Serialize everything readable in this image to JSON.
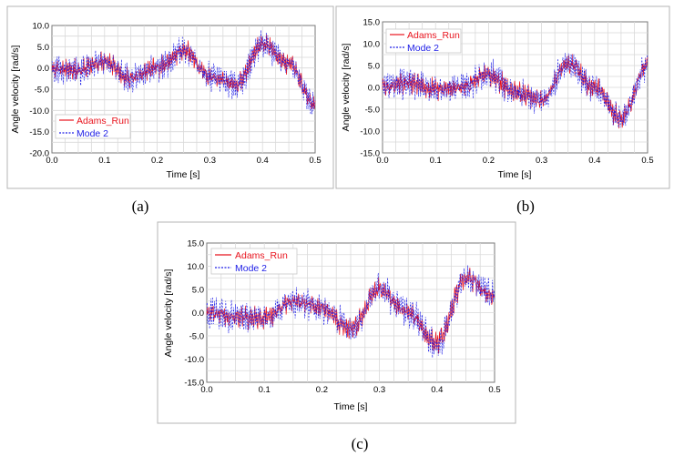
{
  "chart_data": [
    {
      "id": "a",
      "type": "line",
      "caption": "(a)",
      "xlabel": "Time [s]",
      "ylabel": "Angle velocity [rad/s]",
      "xlim": [
        0.0,
        0.5
      ],
      "ylim": [
        -20.0,
        10.0
      ],
      "xticks": [
        "0.0",
        "0.1",
        "0.2",
        "0.3",
        "0.4",
        "0.5"
      ],
      "yticks": [
        "-20.0",
        "-15.0",
        "-10.0",
        "-5.0",
        "0.0",
        "5.0",
        "10.0"
      ],
      "legend_position": "bottom-left",
      "series": [
        {
          "name": "Adams_Run",
          "color": "#e8141e",
          "style": "solid",
          "x": [
            0.0,
            0.05,
            0.1,
            0.15,
            0.2,
            0.25,
            0.3,
            0.35,
            0.4,
            0.45,
            0.5
          ],
          "y": [
            0.0,
            -0.5,
            1.5,
            -2.5,
            0.0,
            4.0,
            -2.0,
            -4.0,
            5.5,
            1.0,
            -9.0
          ]
        },
        {
          "name": "Mode 2",
          "color": "#1e1ee6",
          "style": "dashed",
          "x": [
            0.0,
            0.05,
            0.1,
            0.15,
            0.2,
            0.25,
            0.3,
            0.35,
            0.4,
            0.45,
            0.5
          ],
          "y": [
            0.0,
            -0.5,
            1.5,
            -2.5,
            0.0,
            4.0,
            -2.0,
            -4.0,
            5.5,
            1.0,
            -9.0
          ]
        }
      ]
    },
    {
      "id": "b",
      "type": "line",
      "caption": "(b)",
      "xlabel": "Time [s]",
      "ylabel": "Angle velocity [rad/s]",
      "xlim": [
        0.0,
        0.5
      ],
      "ylim": [
        -15.0,
        15.0
      ],
      "xticks": [
        "0.0",
        "0.1",
        "0.2",
        "0.3",
        "0.4",
        "0.5"
      ],
      "yticks": [
        "-15.0",
        "-10.0",
        "-5.0",
        "0.0",
        "5.0",
        "10.0",
        "15.0"
      ],
      "legend_position": "top-left",
      "series": [
        {
          "name": "Adams_Run",
          "color": "#e8141e",
          "style": "solid",
          "x": [
            0.0,
            0.05,
            0.1,
            0.15,
            0.2,
            0.25,
            0.3,
            0.35,
            0.4,
            0.45,
            0.5
          ],
          "y": [
            0.0,
            1.0,
            -0.5,
            0.0,
            3.0,
            -1.0,
            -3.0,
            5.5,
            0.0,
            -7.0,
            5.0
          ]
        },
        {
          "name": "Mode 2",
          "color": "#1e1ee6",
          "style": "dashed",
          "x": [
            0.0,
            0.05,
            0.1,
            0.15,
            0.2,
            0.25,
            0.3,
            0.35,
            0.4,
            0.45,
            0.5
          ],
          "y": [
            0.0,
            1.0,
            -0.5,
            0.0,
            3.0,
            -1.0,
            -3.0,
            5.5,
            0.0,
            -7.0,
            5.0
          ]
        }
      ]
    },
    {
      "id": "c",
      "type": "line",
      "caption": "(c)",
      "xlabel": "Time [s]",
      "ylabel": "Angle velocity [rad/s]",
      "xlim": [
        0.0,
        0.5
      ],
      "ylim": [
        -15.0,
        15.0
      ],
      "xticks": [
        "0.0",
        "0.1",
        "0.2",
        "0.3",
        "0.4",
        "0.5"
      ],
      "yticks": [
        "-15.0",
        "-10.0",
        "-5.0",
        "0.0",
        "5.0",
        "10.0",
        "15.0"
      ],
      "legend_position": "top-left",
      "series": [
        {
          "name": "Adams_Run",
          "color": "#e8141e",
          "style": "solid",
          "x": [
            0.0,
            0.05,
            0.1,
            0.15,
            0.2,
            0.25,
            0.3,
            0.35,
            0.4,
            0.45,
            0.5
          ],
          "y": [
            0.0,
            -1.0,
            -1.0,
            2.5,
            1.0,
            -3.5,
            5.0,
            0.0,
            -6.5,
            7.5,
            3.5
          ]
        },
        {
          "name": "Mode 2",
          "color": "#1e1ee6",
          "style": "dashed",
          "x": [
            0.0,
            0.05,
            0.1,
            0.15,
            0.2,
            0.25,
            0.3,
            0.35,
            0.4,
            0.45,
            0.5
          ],
          "y": [
            0.0,
            -1.0,
            -1.0,
            2.5,
            1.0,
            -3.5,
            5.0,
            0.0,
            -6.5,
            7.5,
            3.5
          ]
        }
      ]
    }
  ]
}
